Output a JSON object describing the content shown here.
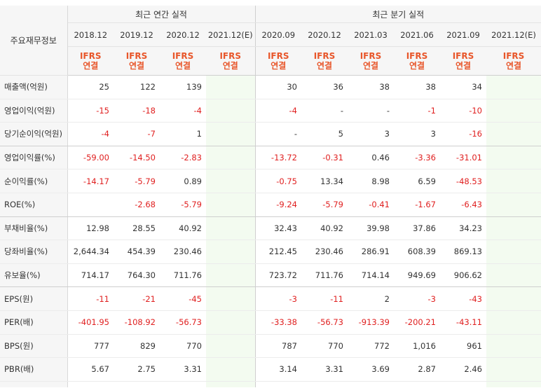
{
  "header": {
    "row_label": "주요재무정보",
    "annual_title": "최근 연간 실적",
    "quarter_title": "최근 분기 실적"
  },
  "periods": [
    {
      "label": "2018.12",
      "std": "IFRS",
      "basis": "연결"
    },
    {
      "label": "2019.12",
      "std": "IFRS",
      "basis": "연결"
    },
    {
      "label": "2020.12",
      "std": "IFRS",
      "basis": "연결"
    },
    {
      "label": "2021.12(E)",
      "std": "IFRS",
      "basis": "연결"
    },
    {
      "label": "2020.09",
      "std": "IFRS",
      "basis": "연결"
    },
    {
      "label": "2020.12",
      "std": "IFRS",
      "basis": "연결"
    },
    {
      "label": "2021.03",
      "std": "IFRS",
      "basis": "연결"
    },
    {
      "label": "2021.06",
      "std": "IFRS",
      "basis": "연결"
    },
    {
      "label": "2021.09",
      "std": "IFRS",
      "basis": "연결"
    },
    {
      "label": "2021.12(E)",
      "std": "IFRS",
      "basis": "연결"
    }
  ],
  "rows": [
    {
      "name": "매출액(억원)",
      "values": [
        "25",
        "122",
        "139",
        "",
        "30",
        "36",
        "38",
        "38",
        "34",
        ""
      ]
    },
    {
      "name": "영업이익(억원)",
      "values": [
        "-15",
        "-18",
        "-4",
        "",
        "-4",
        "-",
        "-",
        "-1",
        "-10",
        ""
      ]
    },
    {
      "name": "당기순이익(억원)",
      "values": [
        "-4",
        "-7",
        "1",
        "",
        "-",
        "5",
        "3",
        "3",
        "-16",
        ""
      ]
    },
    {
      "name": "영업이익률(%)",
      "values": [
        "-59.00",
        "-14.50",
        "-2.83",
        "",
        "-13.72",
        "-0.31",
        "0.46",
        "-3.36",
        "-31.01",
        ""
      ]
    },
    {
      "name": "순이익률(%)",
      "values": [
        "-14.17",
        "-5.79",
        "0.89",
        "",
        "-0.75",
        "13.34",
        "8.98",
        "6.59",
        "-48.53",
        ""
      ]
    },
    {
      "name": "ROE(%)",
      "values": [
        "",
        "-2.68",
        "-5.79",
        "",
        "-9.24",
        "-5.79",
        "-0.41",
        "-1.67",
        "-6.43",
        ""
      ]
    },
    {
      "name": "부채비율(%)",
      "values": [
        "12.98",
        "28.55",
        "40.92",
        "",
        "32.43",
        "40.92",
        "39.98",
        "37.86",
        "34.23",
        ""
      ]
    },
    {
      "name": "당좌비율(%)",
      "values": [
        "2,644.34",
        "454.39",
        "230.46",
        "",
        "212.45",
        "230.46",
        "286.91",
        "608.39",
        "869.13",
        ""
      ]
    },
    {
      "name": "유보율(%)",
      "values": [
        "714.17",
        "764.30",
        "711.76",
        "",
        "723.72",
        "711.76",
        "714.14",
        "949.69",
        "906.62",
        ""
      ]
    },
    {
      "name": "EPS(원)",
      "values": [
        "-11",
        "-21",
        "-45",
        "",
        "-3",
        "-11",
        "2",
        "-3",
        "-43",
        ""
      ]
    },
    {
      "name": "PER(배)",
      "values": [
        "-401.95",
        "-108.92",
        "-56.73",
        "",
        "-33.38",
        "-56.73",
        "-913.39",
        "-200.21",
        "-43.11",
        ""
      ]
    },
    {
      "name": "BPS(원)",
      "values": [
        "777",
        "829",
        "770",
        "",
        "787",
        "770",
        "772",
        "1,016",
        "961",
        ""
      ]
    },
    {
      "name": "PBR(배)",
      "values": [
        "5.67",
        "2.75",
        "3.31",
        "",
        "3.14",
        "3.31",
        "3.69",
        "2.87",
        "2.46",
        ""
      ]
    }
  ],
  "colors": {
    "negative": "#e02020",
    "ifrs": "#e8562a",
    "estimate_bg": "#f3fbf0"
  }
}
